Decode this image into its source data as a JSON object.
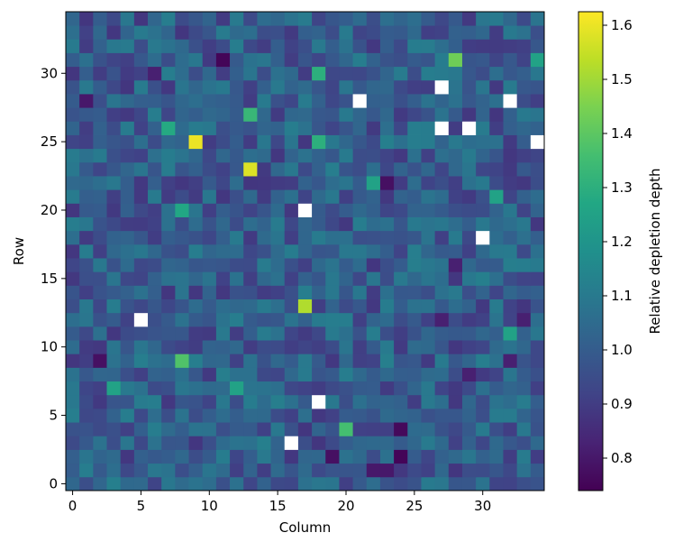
{
  "chart_data": {
    "type": "heatmap",
    "title": "",
    "xlabel": "Column",
    "ylabel": "Row",
    "colorbar_label": "Relative depletion depth",
    "colormap": "viridis",
    "n_cols": 35,
    "n_rows": 35,
    "xlim": [
      -0.5,
      34.5
    ],
    "ylim": [
      -0.5,
      34.5
    ],
    "x_ticks": [
      0,
      5,
      10,
      15,
      20,
      25,
      30
    ],
    "y_ticks": [
      0,
      5,
      10,
      15,
      20,
      25,
      30
    ],
    "color_range": [
      0.74,
      1.625
    ],
    "colorbar_ticks": [
      0.8,
      0.9,
      1.0,
      1.1,
      1.2,
      1.3,
      1.4,
      1.5,
      1.6
    ],
    "colorbar_tick_labels": [
      "0.8",
      "0.9",
      "1.0",
      "1.1",
      "1.2",
      "1.3",
      "1.4",
      "1.5",
      "1.6"
    ],
    "base_value": 1.0,
    "hot_cells": [
      {
        "col": 9,
        "row": 25,
        "value": 1.6
      },
      {
        "col": 13,
        "row": 23,
        "value": 1.58
      },
      {
        "col": 17,
        "row": 13,
        "value": 1.52
      },
      {
        "col": 28,
        "row": 31,
        "value": 1.43
      },
      {
        "col": 8,
        "row": 9,
        "value": 1.38
      },
      {
        "col": 20,
        "row": 4,
        "value": 1.36
      },
      {
        "col": 13,
        "row": 27,
        "value": 1.33
      },
      {
        "col": 18,
        "row": 30,
        "value": 1.3
      },
      {
        "col": 18,
        "row": 25,
        "value": 1.3
      },
      {
        "col": 7,
        "row": 26,
        "value": 1.28
      },
      {
        "col": 8,
        "row": 20,
        "value": 1.27
      },
      {
        "col": 31,
        "row": 21,
        "value": 1.25
      },
      {
        "col": 3,
        "row": 7,
        "value": 1.25
      },
      {
        "col": 12,
        "row": 7,
        "value": 1.25
      },
      {
        "col": 32,
        "row": 11,
        "value": 1.25
      },
      {
        "col": 34,
        "row": 31,
        "value": 1.25
      },
      {
        "col": 22,
        "row": 22,
        "value": 1.25
      }
    ],
    "low_cells": [
      {
        "col": 11,
        "row": 31,
        "value": 0.75
      },
      {
        "col": 24,
        "row": 2,
        "value": 0.75
      },
      {
        "col": 24,
        "row": 4,
        "value": 0.76
      },
      {
        "col": 2,
        "row": 9,
        "value": 0.78
      },
      {
        "col": 23,
        "row": 22,
        "value": 0.78
      },
      {
        "col": 19,
        "row": 2,
        "value": 0.78
      },
      {
        "col": 22,
        "row": 1,
        "value": 0.8
      },
      {
        "col": 23,
        "row": 1,
        "value": 0.8
      },
      {
        "col": 29,
        "row": 8,
        "value": 0.82
      },
      {
        "col": 27,
        "row": 12,
        "value": 0.82
      },
      {
        "col": 33,
        "row": 12,
        "value": 0.82
      },
      {
        "col": 32,
        "row": 9,
        "value": 0.82
      },
      {
        "col": 1,
        "row": 28,
        "value": 0.8
      },
      {
        "col": 6,
        "row": 30,
        "value": 0.82
      },
      {
        "col": 28,
        "row": 16,
        "value": 0.82
      }
    ],
    "masked_cells": [
      {
        "col": 5,
        "row": 12
      },
      {
        "col": 16,
        "row": 3
      },
      {
        "col": 17,
        "row": 20
      },
      {
        "col": 18,
        "row": 6
      },
      {
        "col": 21,
        "row": 28
      },
      {
        "col": 27,
        "row": 29
      },
      {
        "col": 27,
        "row": 26
      },
      {
        "col": 29,
        "row": 26
      },
      {
        "col": 30,
        "row": 18
      },
      {
        "col": 32,
        "row": 28
      },
      {
        "col": 34,
        "row": 25
      }
    ]
  }
}
